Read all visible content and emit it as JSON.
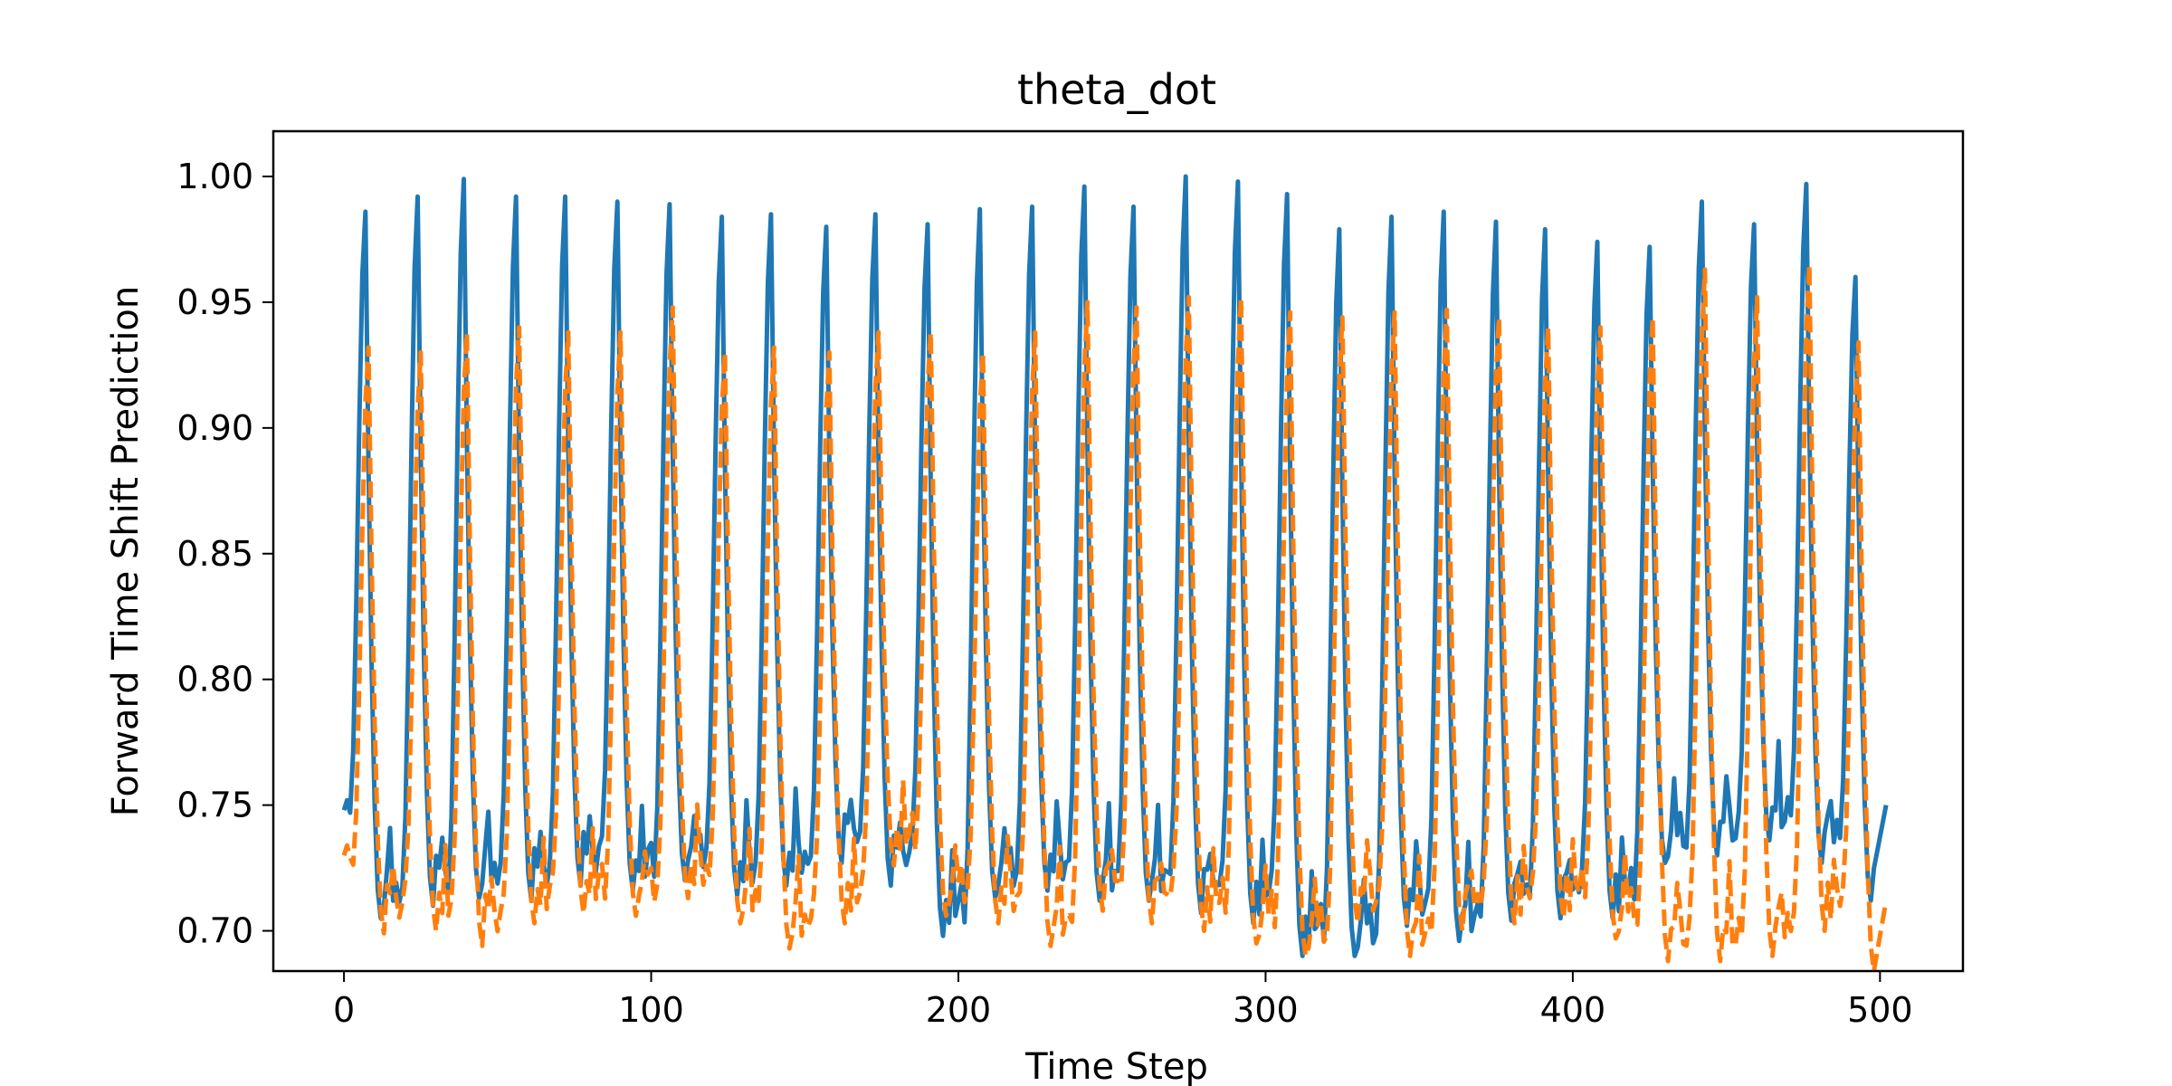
{
  "chart_data": {
    "type": "line",
    "title": "theta_dot",
    "xlabel": "Time Step",
    "ylabel": "Forward Time Shift Prediction",
    "xlim": [
      -23,
      527
    ],
    "ylim": [
      0.684,
      1.018
    ],
    "xticks": [
      0,
      100,
      200,
      300,
      400,
      500
    ],
    "xtick_labels": [
      "0",
      "100",
      "200",
      "300",
      "400",
      "500"
    ],
    "yticks": [
      0.7,
      0.75,
      0.8,
      0.85,
      0.9,
      0.95,
      1.0
    ],
    "ytick_labels": [
      "0.70",
      "0.75",
      "0.80",
      "0.85",
      "0.90",
      "0.95",
      "1.00"
    ],
    "grid": false,
    "legend": "none",
    "series": [
      {
        "color": "#1f77b4",
        "style": "solid",
        "start_value": 0.748,
        "peaks": [
          {
            "x": 7,
            "y": 0.986
          },
          {
            "x": 24,
            "y": 0.992
          },
          {
            "x": 39,
            "y": 0.999
          },
          {
            "x": 56,
            "y": 0.992
          },
          {
            "x": 72,
            "y": 0.992
          },
          {
            "x": 89,
            "y": 0.99
          },
          {
            "x": 106,
            "y": 0.989
          },
          {
            "x": 123,
            "y": 0.984
          },
          {
            "x": 139,
            "y": 0.985
          },
          {
            "x": 157,
            "y": 0.98
          },
          {
            "x": 173,
            "y": 0.985
          },
          {
            "x": 190,
            "y": 0.981
          },
          {
            "x": 207,
            "y": 0.987
          },
          {
            "x": 224,
            "y": 0.988
          },
          {
            "x": 241,
            "y": 0.996
          },
          {
            "x": 257,
            "y": 0.988
          },
          {
            "x": 274,
            "y": 1.0
          },
          {
            "x": 291,
            "y": 0.998
          },
          {
            "x": 307,
            "y": 0.993
          },
          {
            "x": 324,
            "y": 0.979
          },
          {
            "x": 341,
            "y": 0.984
          },
          {
            "x": 358,
            "y": 0.986
          },
          {
            "x": 375,
            "y": 0.982
          },
          {
            "x": 391,
            "y": 0.979
          },
          {
            "x": 408,
            "y": 0.974
          },
          {
            "x": 425,
            "y": 0.972
          },
          {
            "x": 442,
            "y": 0.99
          },
          {
            "x": 459,
            "y": 0.981
          },
          {
            "x": 476,
            "y": 0.997
          },
          {
            "x": 492,
            "y": 0.96
          }
        ],
        "troughs": [
          0.705,
          0.71,
          0.713,
          0.712,
          0.718,
          0.716,
          0.72,
          0.714,
          0.718,
          0.727,
          0.718,
          0.698,
          0.713,
          0.716,
          0.712,
          0.712,
          0.707,
          0.703,
          0.69,
          0.69,
          0.702,
          0.696,
          0.704,
          0.705,
          0.705,
          0.727,
          0.73,
          0.736,
          0.727,
          0.712
        ],
        "end_value": 0.75
      },
      {
        "color": "#ff7f0e",
        "style": "dashed",
        "start_value": 0.73,
        "peaks": [
          {
            "x": 8,
            "y": 0.932
          },
          {
            "x": 25,
            "y": 0.93
          },
          {
            "x": 40,
            "y": 0.938
          },
          {
            "x": 57,
            "y": 0.94
          },
          {
            "x": 73,
            "y": 0.938
          },
          {
            "x": 90,
            "y": 0.938
          },
          {
            "x": 107,
            "y": 0.948
          },
          {
            "x": 124,
            "y": 0.93
          },
          {
            "x": 140,
            "y": 0.932
          },
          {
            "x": 158,
            "y": 0.93
          },
          {
            "x": 174,
            "y": 0.938
          },
          {
            "x": 191,
            "y": 0.938
          },
          {
            "x": 208,
            "y": 0.93
          },
          {
            "x": 225,
            "y": 0.938
          },
          {
            "x": 242,
            "y": 0.95
          },
          {
            "x": 258,
            "y": 0.948
          },
          {
            "x": 275,
            "y": 0.952
          },
          {
            "x": 292,
            "y": 0.952
          },
          {
            "x": 308,
            "y": 0.946
          },
          {
            "x": 325,
            "y": 0.944
          },
          {
            "x": 342,
            "y": 0.946
          },
          {
            "x": 359,
            "y": 0.947
          },
          {
            "x": 376,
            "y": 0.944
          },
          {
            "x": 392,
            "y": 0.94
          },
          {
            "x": 409,
            "y": 0.94
          },
          {
            "x": 426,
            "y": 0.944
          },
          {
            "x": 443,
            "y": 0.963
          },
          {
            "x": 460,
            "y": 0.952
          },
          {
            "x": 477,
            "y": 0.965
          },
          {
            "x": 493,
            "y": 0.934
          }
        ],
        "troughs": [
          0.699,
          0.7,
          0.694,
          0.703,
          0.707,
          0.706,
          0.713,
          0.703,
          0.693,
          0.703,
          0.726,
          0.706,
          0.703,
          0.694,
          0.708,
          0.703,
          0.7,
          0.695,
          0.69,
          0.703,
          0.69,
          0.7,
          0.703,
          0.705,
          0.697,
          0.688,
          0.688,
          0.69,
          0.7,
          0.684
        ],
        "end_value": 0.712
      }
    ]
  }
}
